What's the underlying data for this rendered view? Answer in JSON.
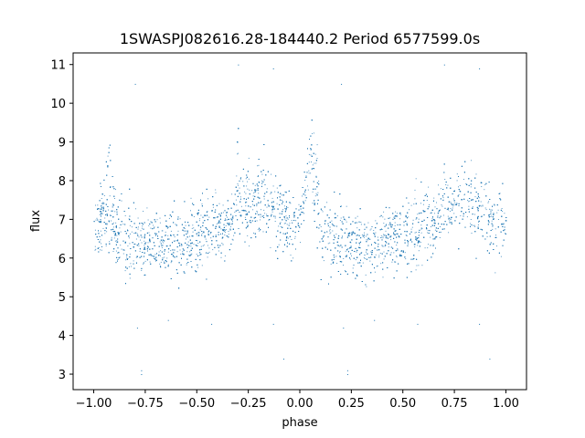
{
  "chart_data": {
    "type": "scatter",
    "title": "1SWASPJ082616.28-184440.2 Period 6577599.0s",
    "xlabel": "phase",
    "ylabel": "flux",
    "xlim": [
      -1.1,
      1.1
    ],
    "ylim": [
      2.6,
      11.3
    ],
    "xticks": [
      -1.0,
      -0.75,
      -0.5,
      -0.25,
      0.0,
      0.25,
      0.5,
      0.75,
      1.0
    ],
    "xtick_labels": [
      "−1.00",
      "−0.75",
      "−0.50",
      "−0.25",
      "0.00",
      "0.25",
      "0.50",
      "0.75",
      "1.00"
    ],
    "yticks": [
      3,
      4,
      5,
      6,
      7,
      8,
      9,
      10,
      11
    ],
    "ytick_labels": [
      "3",
      "4",
      "5",
      "6",
      "7",
      "8",
      "9",
      "10",
      "11"
    ],
    "grid": false,
    "marker_color": "#1f77b4",
    "profile": [
      {
        "phase": -0.9,
        "flux": 6.7
      },
      {
        "phase": -0.85,
        "flux": 6.5
      },
      {
        "phase": -0.8,
        "flux": 6.5
      },
      {
        "phase": -0.75,
        "flux": 6.4
      },
      {
        "phase": -0.7,
        "flux": 6.3
      },
      {
        "phase": -0.65,
        "flux": 6.3
      },
      {
        "phase": -0.6,
        "flux": 6.4
      },
      {
        "phase": -0.55,
        "flux": 6.5
      },
      {
        "phase": -0.5,
        "flux": 6.6
      },
      {
        "phase": -0.45,
        "flux": 6.7
      },
      {
        "phase": -0.4,
        "flux": 6.8
      },
      {
        "phase": -0.35,
        "flux": 6.9
      },
      {
        "phase": -0.3,
        "flux": 7.2
      },
      {
        "phase": -0.25,
        "flux": 7.5
      },
      {
        "phase": -0.2,
        "flux": 7.5
      },
      {
        "phase": -0.15,
        "flux": 7.4
      },
      {
        "phase": -0.1,
        "flux": 7.2
      },
      {
        "phase": -0.05,
        "flux": 6.8
      },
      {
        "phase": 0.0,
        "flux": 7.0
      },
      {
        "phase": 0.05,
        "flux": 8.5
      },
      {
        "phase": 0.1,
        "flux": 6.7
      },
      {
        "phase": 0.15,
        "flux": 6.5
      },
      {
        "phase": 0.2,
        "flux": 6.5
      },
      {
        "phase": 0.25,
        "flux": 6.4
      },
      {
        "phase": 0.3,
        "flux": 6.3
      },
      {
        "phase": 0.35,
        "flux": 6.3
      },
      {
        "phase": 0.4,
        "flux": 6.4
      },
      {
        "phase": 0.45,
        "flux": 6.5
      },
      {
        "phase": 0.5,
        "flux": 6.6
      },
      {
        "phase": 0.55,
        "flux": 6.7
      },
      {
        "phase": 0.6,
        "flux": 6.8
      },
      {
        "phase": 0.65,
        "flux": 6.9
      },
      {
        "phase": 0.7,
        "flux": 7.2
      },
      {
        "phase": 0.75,
        "flux": 7.5
      },
      {
        "phase": 0.8,
        "flux": 7.5
      },
      {
        "phase": 0.85,
        "flux": 7.4
      },
      {
        "phase": 0.9,
        "flux": 7.2
      },
      {
        "phase": 0.95,
        "flux": 6.8
      },
      {
        "phase": 1.0,
        "flux": 7.0
      }
    ],
    "outliers": [
      {
        "phase": -0.77,
        "flux": 3.1
      },
      {
        "phase": -0.77,
        "flux": 3.0
      },
      {
        "phase": 0.23,
        "flux": 3.1
      },
      {
        "phase": 0.23,
        "flux": 3.0
      },
      {
        "phase": -0.8,
        "flux": 10.5
      },
      {
        "phase": 0.2,
        "flux": 10.5
      },
      {
        "phase": -0.3,
        "flux": 11.0
      },
      {
        "phase": 0.7,
        "flux": 11.0
      },
      {
        "phase": -0.13,
        "flux": 10.9
      },
      {
        "phase": 0.87,
        "flux": 10.9
      },
      {
        "phase": -0.64,
        "flux": 4.4
      },
      {
        "phase": 0.36,
        "flux": 4.4
      },
      {
        "phase": -0.79,
        "flux": 4.2
      },
      {
        "phase": 0.21,
        "flux": 4.2
      },
      {
        "phase": -0.43,
        "flux": 4.3
      },
      {
        "phase": 0.57,
        "flux": 4.3
      },
      {
        "phase": -0.08,
        "flux": 3.4
      },
      {
        "phase": 0.92,
        "flux": 3.4
      },
      {
        "phase": -0.13,
        "flux": 4.3
      },
      {
        "phase": 0.87,
        "flux": 4.3
      }
    ]
  }
}
